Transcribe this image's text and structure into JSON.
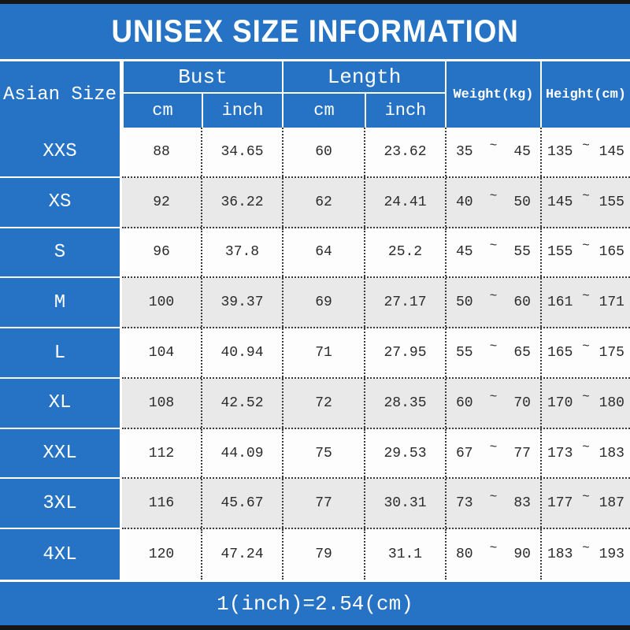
{
  "title": "UNISEX SIZE INFORMATION",
  "header": {
    "size_column": "Asian Size",
    "bust_group": {
      "label": "Bust",
      "sub_cm": "cm",
      "sub_inch": "inch"
    },
    "length_group": {
      "label": "Length",
      "sub_cm": "cm",
      "sub_inch": "inch"
    },
    "weight_column": "Weight(kg)",
    "height_column": "Height(cm)"
  },
  "range_separator": "~",
  "rows": [
    {
      "size": "XXS",
      "bust_cm": "88",
      "bust_inch": "34.65",
      "length_cm": "60",
      "length_inch": "23.62",
      "weight_min": "35",
      "weight_max": "45",
      "height_min": "135",
      "height_max": "145"
    },
    {
      "size": "XS",
      "bust_cm": "92",
      "bust_inch": "36.22",
      "length_cm": "62",
      "length_inch": "24.41",
      "weight_min": "40",
      "weight_max": "50",
      "height_min": "145",
      "height_max": "155"
    },
    {
      "size": "S",
      "bust_cm": "96",
      "bust_inch": "37.8",
      "length_cm": "64",
      "length_inch": "25.2",
      "weight_min": "45",
      "weight_max": "55",
      "height_min": "155",
      "height_max": "165"
    },
    {
      "size": "M",
      "bust_cm": "100",
      "bust_inch": "39.37",
      "length_cm": "69",
      "length_inch": "27.17",
      "weight_min": "50",
      "weight_max": "60",
      "height_min": "161",
      "height_max": "171"
    },
    {
      "size": "L",
      "bust_cm": "104",
      "bust_inch": "40.94",
      "length_cm": "71",
      "length_inch": "27.95",
      "weight_min": "55",
      "weight_max": "65",
      "height_min": "165",
      "height_max": "175"
    },
    {
      "size": "XL",
      "bust_cm": "108",
      "bust_inch": "42.52",
      "length_cm": "72",
      "length_inch": "28.35",
      "weight_min": "60",
      "weight_max": "70",
      "height_min": "170",
      "height_max": "180"
    },
    {
      "size": "XXL",
      "bust_cm": "112",
      "bust_inch": "44.09",
      "length_cm": "75",
      "length_inch": "29.53",
      "weight_min": "67",
      "weight_max": "77",
      "height_min": "173",
      "height_max": "183"
    },
    {
      "size": "3XL",
      "bust_cm": "116",
      "bust_inch": "45.67",
      "length_cm": "77",
      "length_inch": "30.31",
      "weight_min": "73",
      "weight_max": "83",
      "height_min": "177",
      "height_max": "187"
    },
    {
      "size": "4XL",
      "bust_cm": "120",
      "bust_inch": "47.24",
      "length_cm": "79",
      "length_inch": "31.1",
      "weight_min": "80",
      "weight_max": "90",
      "height_min": "183",
      "height_max": "193"
    }
  ],
  "footer": "1(inch)=2.54(cm)",
  "colors": {
    "accent_blue": "#2673c5",
    "alt_row_gray": "#e9e9e9",
    "edge_black": "#161616"
  }
}
